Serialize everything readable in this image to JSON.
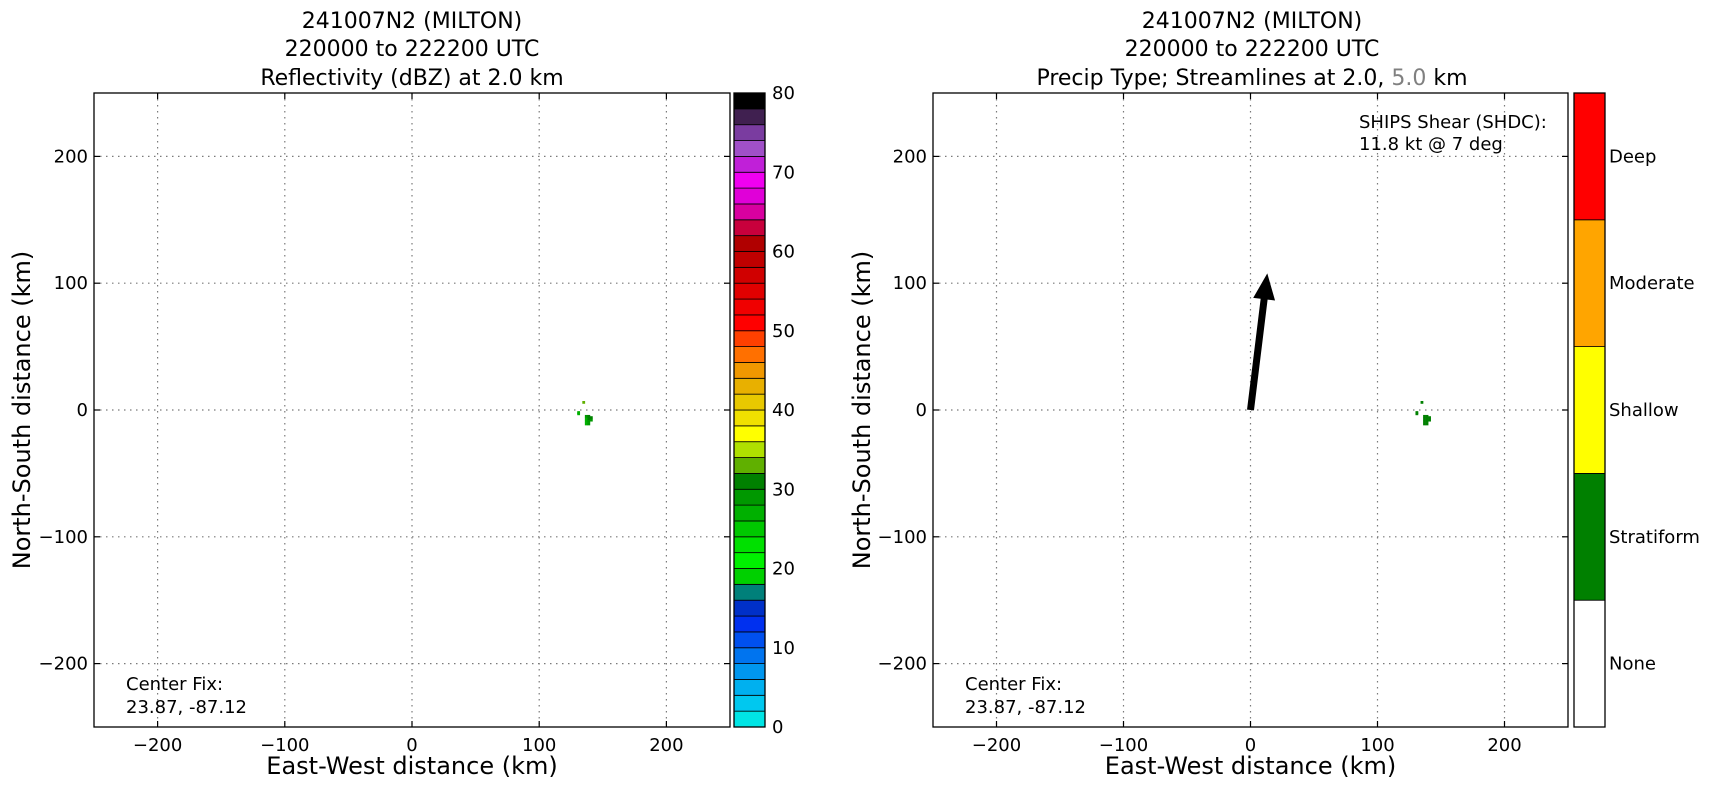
{
  "chart_data": [
    {
      "type": "heatmap",
      "title": [
        "241007N2 (MILTON)",
        "220000 to 222200 UTC",
        "Reflectivity (dBZ) at 2.0 km"
      ],
      "xlabel": "East-West distance (km)",
      "ylabel": "North-South distance (km)",
      "xlim": [
        -250,
        250
      ],
      "ylim": [
        -250,
        250
      ],
      "xticks": [
        -200,
        -100,
        0,
        100,
        200
      ],
      "yticks": [
        -200,
        -100,
        0,
        100,
        200
      ],
      "xtick_labels": [
        "−200",
        "−100",
        "0",
        "100",
        "200"
      ],
      "ytick_labels": [
        "−200",
        "−100",
        "0",
        "100",
        "200"
      ],
      "grid": true,
      "annotation": [
        "Center Fix:",
        "23.87, -87.12"
      ],
      "colorbar": {
        "min": 0,
        "max": 80,
        "ticks": [
          "0",
          "10",
          "20",
          "30",
          "40",
          "50",
          "60",
          "70",
          "80"
        ],
        "tick_values": [
          0,
          10,
          20,
          30,
          40,
          50,
          60,
          70,
          80
        ],
        "colors": [
          "#00e5e5",
          "#00c8ef",
          "#00b0ef",
          "#0096ef",
          "#0074ef",
          "#0050ef",
          "#0030ef",
          "#0030c8",
          "#00807a",
          "#00d000",
          "#00f000",
          "#00e000",
          "#00c800",
          "#00b000",
          "#009800",
          "#008000",
          "#60b000",
          "#b0e000",
          "#ffff00",
          "#f0e000",
          "#e8c800",
          "#e8b000",
          "#f09800",
          "#ff7000",
          "#ff4000",
          "#ff0000",
          "#f00000",
          "#e00000",
          "#d00000",
          "#c00000",
          "#b00000",
          "#c8003c",
          "#d800a0",
          "#e000d8",
          "#f000f0",
          "#c020d8",
          "#a050c8",
          "#7a3ca0",
          "#402050",
          "#000000"
        ]
      },
      "points": [
        {
          "x": 135,
          "y": 6,
          "value": 33
        },
        {
          "x": 131,
          "y": -2,
          "value": 27
        },
        {
          "x": 131,
          "y": -3,
          "value": 27
        },
        {
          "x": 137,
          "y": -5,
          "value": 28
        },
        {
          "x": 139,
          "y": -5,
          "value": 31
        },
        {
          "x": 141,
          "y": -6,
          "value": 30
        },
        {
          "x": 137,
          "y": -7,
          "value": 26
        },
        {
          "x": 139,
          "y": -7,
          "value": 31
        },
        {
          "x": 141,
          "y": -8,
          "value": 29
        },
        {
          "x": 137,
          "y": -9,
          "value": 27
        },
        {
          "x": 139,
          "y": -9,
          "value": 28
        },
        {
          "x": 137,
          "y": -11,
          "value": 27
        },
        {
          "x": 139,
          "y": -11,
          "value": 28
        }
      ]
    },
    {
      "type": "heatmap",
      "title": [
        "241007N2 (MILTON)",
        "220000 to 222200 UTC",
        "Precip Type; Streamlines at 2.0, ",
        "5.0",
        " km"
      ],
      "xlabel": "East-West distance (km)",
      "ylabel": "North-South distance (km)",
      "xlim": [
        -250,
        250
      ],
      "ylim": [
        -250,
        250
      ],
      "xticks": [
        -200,
        -100,
        0,
        100,
        200
      ],
      "yticks": [
        -200,
        -100,
        0,
        100,
        200
      ],
      "xtick_labels": [
        "−200",
        "−100",
        "0",
        "100",
        "200"
      ],
      "ytick_labels": [
        "−200",
        "−100",
        "0",
        "100",
        "200"
      ],
      "grid": true,
      "annotation": [
        "Center Fix:",
        "23.87, -87.12"
      ],
      "shear_annotation": [
        "SHIPS Shear (SHDC):",
        "11.8 kt @ 7 deg"
      ],
      "shear_arrow": {
        "speed_kt": 11.8,
        "direction_deg": 7
      },
      "colorbar": {
        "categories": [
          "None",
          "Stratiform",
          "Shallow",
          "Moderate",
          "Deep"
        ],
        "colors": [
          "#ffffff",
          "#008000",
          "#ffff00",
          "#ffa500",
          "#ff0000"
        ]
      },
      "points": [
        {
          "x": 135,
          "y": 6,
          "category": "Stratiform"
        },
        {
          "x": 131,
          "y": -2,
          "category": "Stratiform"
        },
        {
          "x": 131,
          "y": -3,
          "category": "Stratiform"
        },
        {
          "x": 137,
          "y": -5,
          "category": "Stratiform"
        },
        {
          "x": 139,
          "y": -5,
          "category": "Stratiform"
        },
        {
          "x": 141,
          "y": -6,
          "category": "Stratiform"
        },
        {
          "x": 137,
          "y": -7,
          "category": "Stratiform"
        },
        {
          "x": 139,
          "y": -7,
          "category": "Stratiform"
        },
        {
          "x": 141,
          "y": -8,
          "category": "Stratiform"
        },
        {
          "x": 137,
          "y": -9,
          "category": "Stratiform"
        },
        {
          "x": 139,
          "y": -9,
          "category": "Stratiform"
        },
        {
          "x": 137,
          "y": -11,
          "category": "Stratiform"
        },
        {
          "x": 139,
          "y": -11,
          "category": "Stratiform"
        }
      ]
    }
  ]
}
